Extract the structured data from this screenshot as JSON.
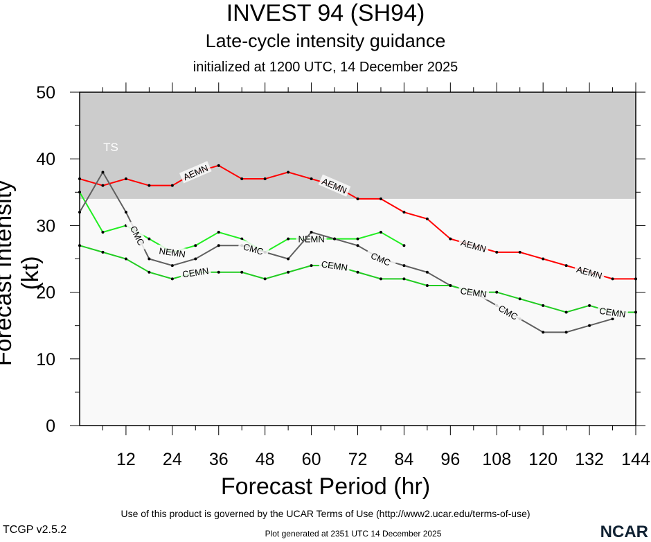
{
  "chart_data": {
    "type": "line",
    "title": "INVEST 94 (SH94)",
    "subtitle": "Late-cycle intensity guidance",
    "initialized": "initialized at 1200 UTC, 14 December 2025",
    "xlabel": "Forecast Period (hr)",
    "ylabel": "Forecast Intensity (kt)",
    "xlim": [
      0,
      144
    ],
    "ylim": [
      0,
      50
    ],
    "xticks": [
      12,
      24,
      36,
      48,
      60,
      72,
      84,
      96,
      108,
      120,
      132,
      144
    ],
    "yticks": [
      0,
      10,
      20,
      30,
      40,
      50
    ],
    "bands": [
      {
        "label": "TS",
        "from": 34,
        "to": 50,
        "color": "#cccccc"
      }
    ],
    "series": [
      {
        "name": "AEMN",
        "color": "#ff0000",
        "x": [
          0,
          6,
          12,
          18,
          24,
          30,
          36,
          42,
          48,
          54,
          60,
          66,
          72,
          78,
          84,
          90,
          96,
          102,
          108,
          114,
          120,
          126,
          132,
          138,
          144
        ],
        "values": [
          37,
          36,
          37,
          36,
          36,
          38,
          39,
          37,
          37,
          38,
          37,
          36,
          34,
          34,
          32,
          31,
          28,
          27,
          26,
          26,
          25,
          24,
          23,
          22,
          22
        ],
        "labels": [
          30,
          66,
          102,
          132
        ]
      },
      {
        "name": "NEMN",
        "color": "#22ee22",
        "x": [
          0,
          6,
          12,
          18,
          24,
          30,
          36,
          42,
          48,
          54,
          60,
          66,
          72,
          78,
          84
        ],
        "values": [
          35,
          29,
          30,
          28,
          26,
          27,
          29,
          28,
          26,
          28,
          28,
          28,
          28,
          29,
          27
        ],
        "labels": [
          24,
          60
        ]
      },
      {
        "name": "CMC",
        "color": "#606060",
        "x": [
          0,
          6,
          12,
          18,
          24,
          30,
          36,
          42,
          48,
          54,
          60,
          66,
          72,
          78,
          84,
          90,
          96,
          102,
          108,
          114,
          120,
          126,
          132,
          138
        ],
        "values": [
          32,
          38,
          32,
          25,
          24,
          25,
          27,
          27,
          26,
          25,
          29,
          28,
          27,
          25,
          24,
          23,
          21,
          20,
          18,
          16,
          14,
          14,
          15,
          16
        ],
        "labels": [
          15,
          45,
          78,
          111
        ]
      },
      {
        "name": "CEMN",
        "color": "#22cc22",
        "x": [
          0,
          6,
          12,
          18,
          24,
          30,
          36,
          42,
          48,
          54,
          60,
          66,
          72,
          78,
          84,
          90,
          96,
          102,
          108,
          114,
          120,
          126,
          132,
          138,
          144
        ],
        "values": [
          27,
          26,
          25,
          23,
          22,
          23,
          23,
          23,
          22,
          23,
          24,
          24,
          23,
          22,
          22,
          21,
          21,
          20,
          20,
          19,
          18,
          17,
          18,
          17,
          17
        ],
        "labels": [
          30,
          66,
          102,
          138
        ]
      }
    ]
  },
  "footer": {
    "terms": "Use of this product is governed by the UCAR Terms of Use (http://www2.ucar.edu/terms-of-use)",
    "generated": "Plot generated at 2351 UTC   14 December 2025",
    "version": "TCGP v2.5.2",
    "logo": "NCAR"
  }
}
